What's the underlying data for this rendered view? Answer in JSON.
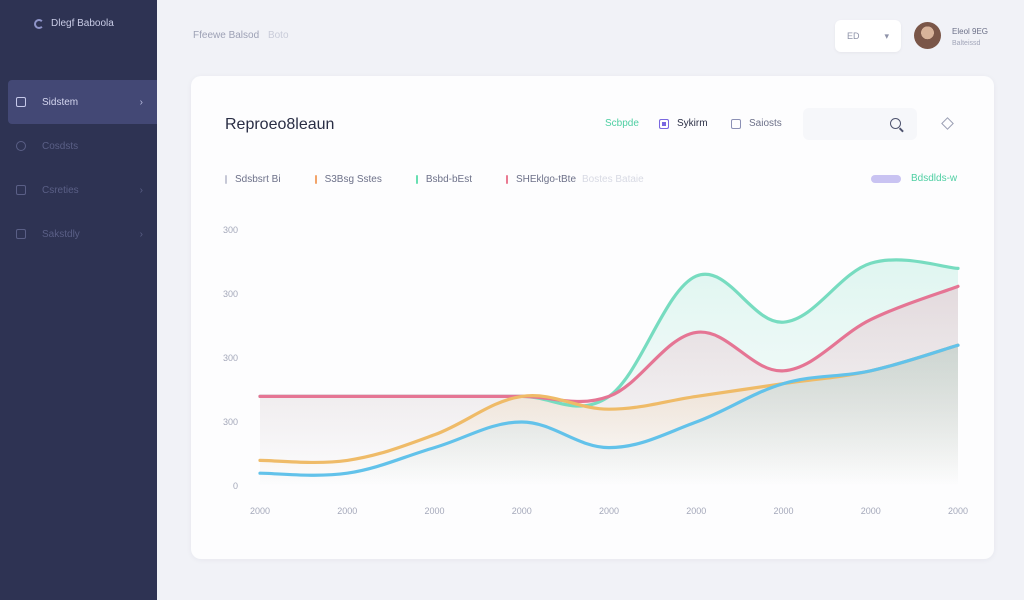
{
  "sidebar": {
    "brand": "Dlegf Baboola",
    "items": [
      {
        "icon": "document-icon",
        "label": "Sidstem",
        "active": true
      },
      {
        "icon": "chat-icon",
        "label": "Cosdsts",
        "active": false
      },
      {
        "icon": "clipboard-icon",
        "label": "Csreties",
        "active": false
      },
      {
        "icon": "settings-icon",
        "label": "Sakstdly",
        "active": false
      }
    ]
  },
  "header": {
    "breadcrumb": "Ffeewe Balsod",
    "breadcrumb_sub": "Boto",
    "button_label": "ED",
    "button_arrow": "▾",
    "user_name": "Eleol 9EG",
    "user_role": "Balteissd"
  },
  "card": {
    "title": "Reproeo8leaun",
    "filters": [
      {
        "label": "Scbpde"
      },
      {
        "label": "Sykirm",
        "checked": true
      },
      {
        "label": "Saiosts",
        "checked": false
      }
    ],
    "search_placeholder": "",
    "legend": [
      {
        "label": "Sdsbsrt Bi",
        "color": "#c6c8d6"
      },
      {
        "label": "S3Bsg Sstes",
        "color": "#f2a46a"
      },
      {
        "label": "Bsbd-bEst",
        "color": "#68dfb2"
      },
      {
        "label": "SHEklgo-tBte",
        "color": "#ea7a92"
      }
    ],
    "legend_faded": "Bostes Bataie",
    "legend_right": "Bdsdlds-w"
  },
  "chart_data": {
    "type": "area",
    "x": [
      "2000",
      "2000",
      "2000",
      "2000",
      "2000",
      "2000",
      "2000",
      "2000",
      "2000"
    ],
    "ytick_labels": [
      "0",
      "300",
      "300",
      "300",
      "300"
    ],
    "colors": {
      "teal": "#77dcc0",
      "pink": "#e57594",
      "orange": "#efbb68",
      "blue": "#62c2ea"
    },
    "series": [
      {
        "color_key": "orange",
        "values": [
          0.1,
          0.1,
          0.2,
          0.35,
          0.3,
          0.35,
          0.4,
          0.45,
          0.55
        ]
      },
      {
        "color_key": "blue",
        "values": [
          0.05,
          0.05,
          0.15,
          0.25,
          0.15,
          0.25,
          0.4,
          0.45,
          0.55
        ]
      },
      {
        "color_key": "pink",
        "values": [
          0.35,
          0.35,
          0.35,
          0.35,
          0.35,
          0.6,
          0.45,
          0.65,
          0.78
        ]
      },
      {
        "color_key": "teal",
        "values": [
          0.35,
          0.35,
          0.35,
          0.35,
          0.35,
          0.82,
          0.64,
          0.87,
          0.85
        ]
      }
    ]
  }
}
